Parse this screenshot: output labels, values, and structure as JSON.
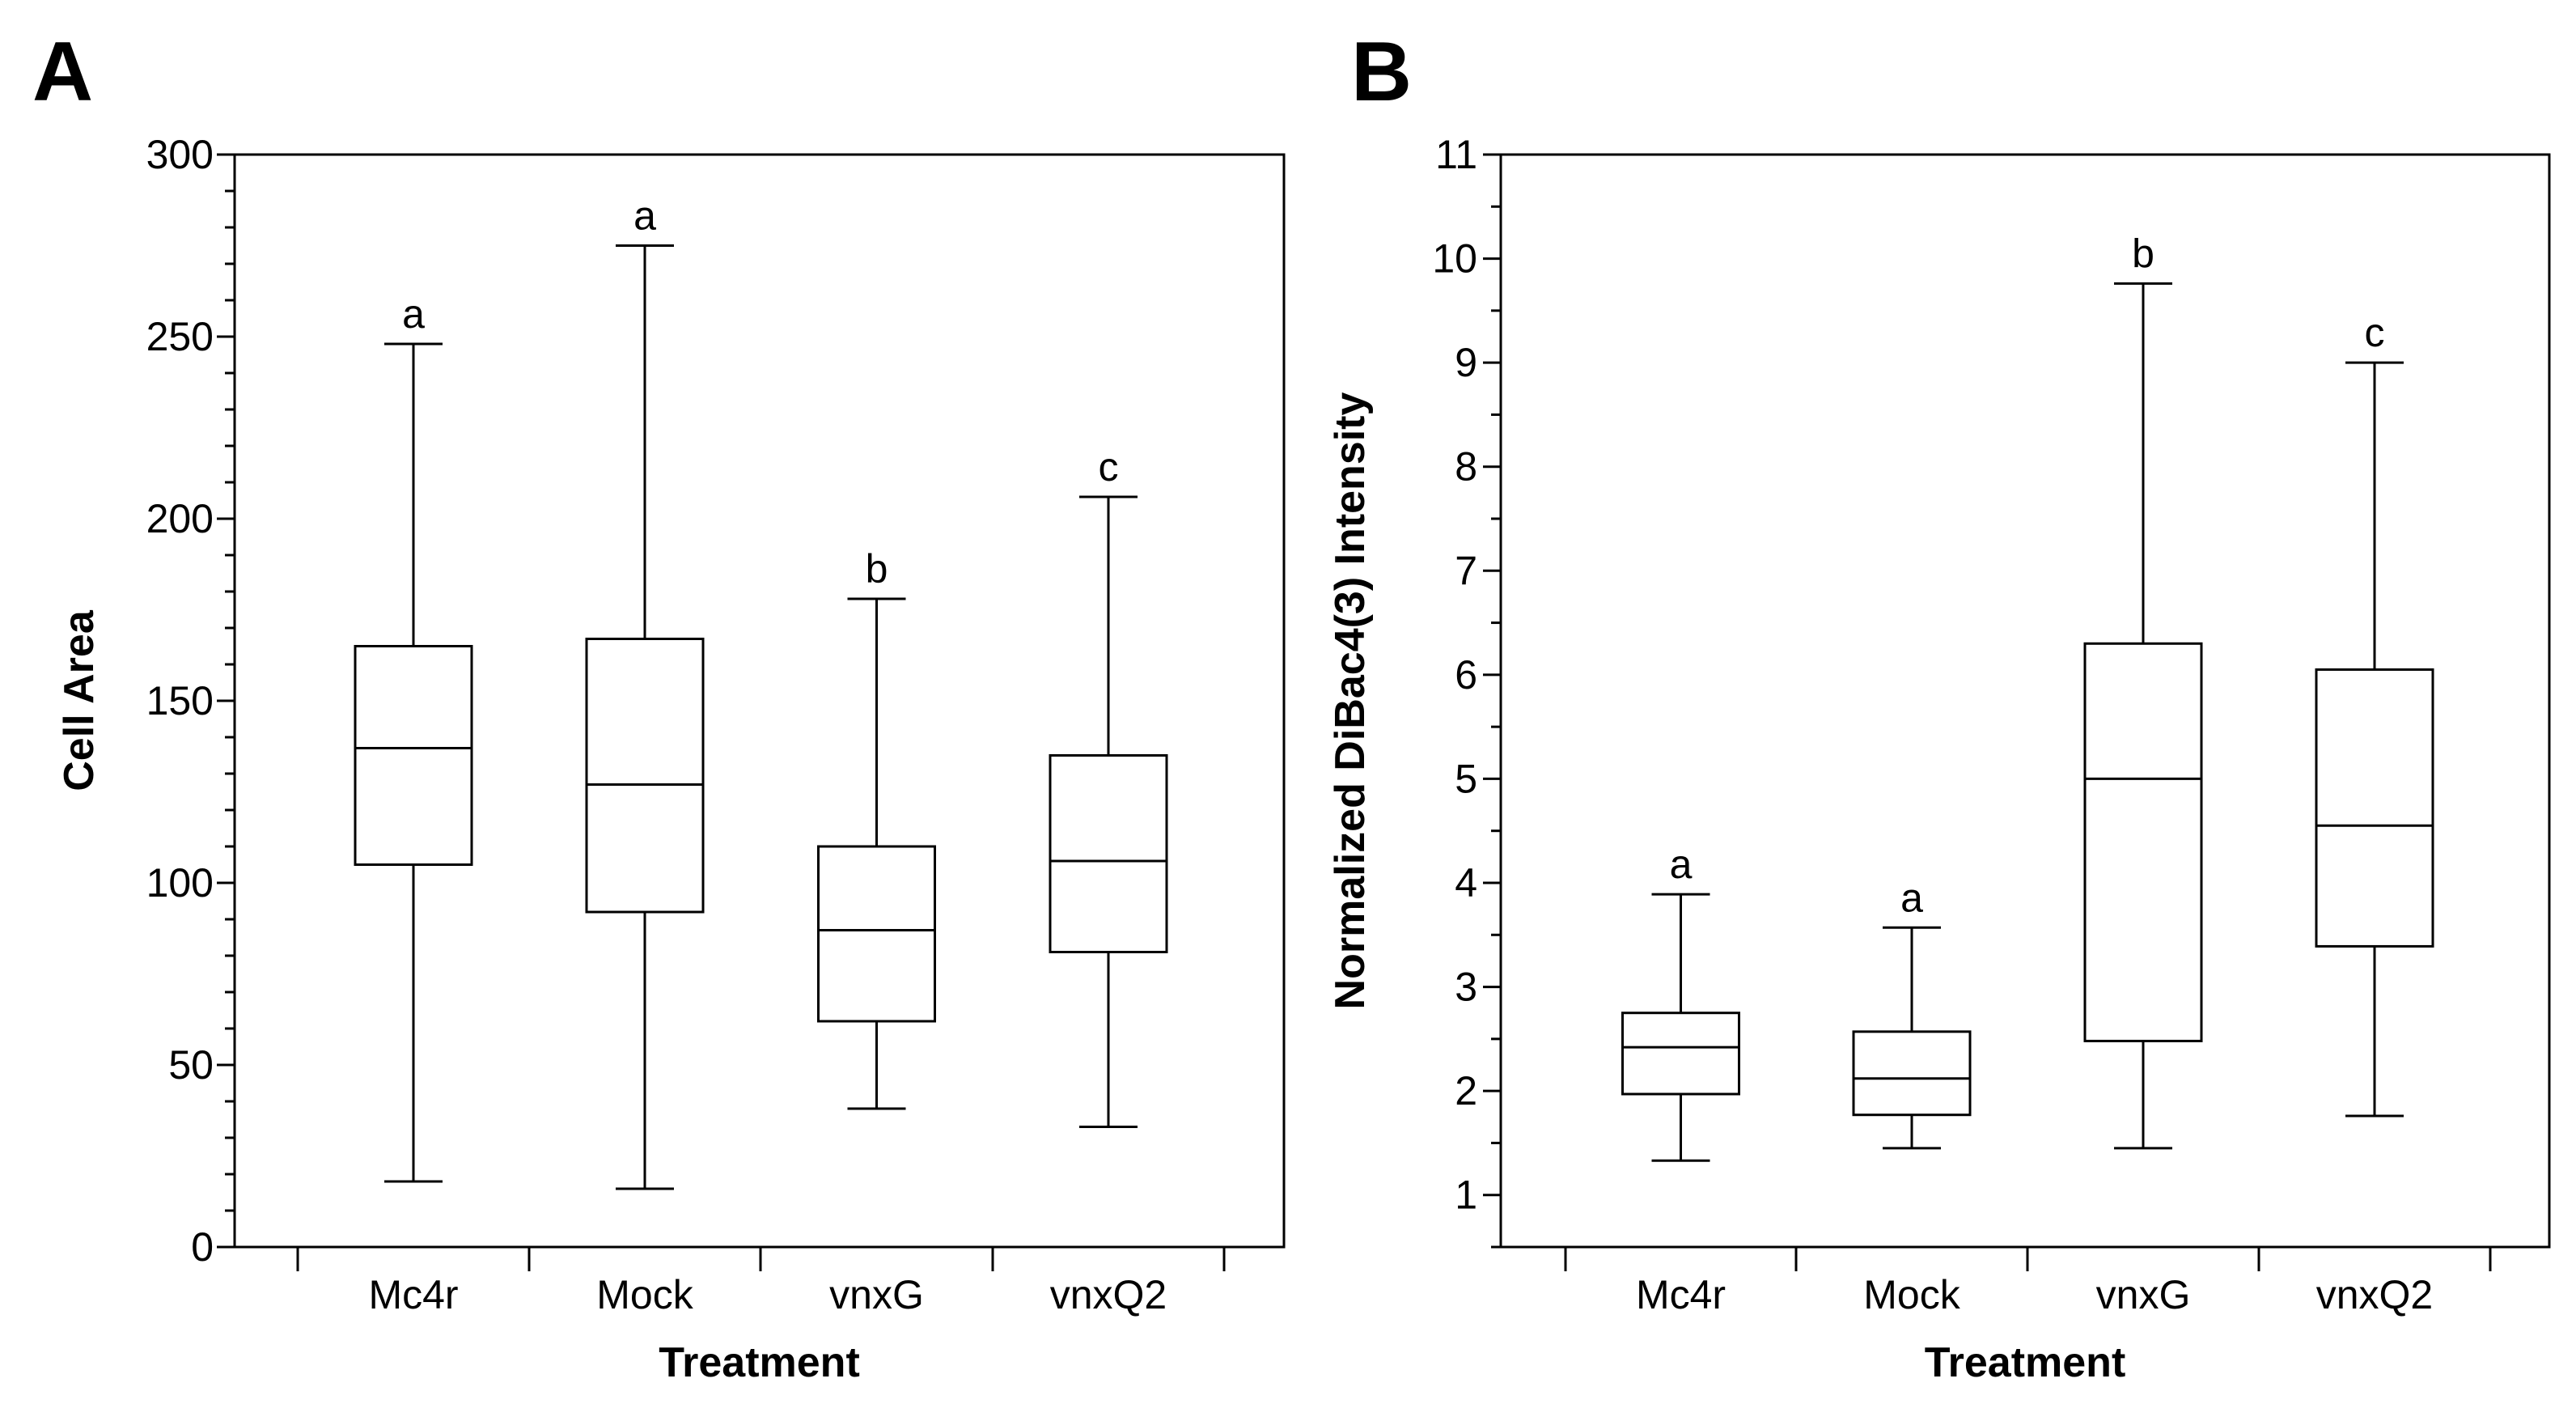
{
  "chart_data": [
    {
      "type": "box",
      "panel_label": "A",
      "xlabel": "Treatment",
      "ylabel": "Cell Area",
      "ylim": [
        0,
        300
      ],
      "major_ticks": [
        0,
        50,
        100,
        150,
        200,
        250,
        300
      ],
      "major_tick_labels": [
        "0",
        "50",
        "100",
        "150",
        "200",
        "250",
        "300"
      ],
      "minor_step": 10,
      "categories": [
        "Mc4r",
        "Mock",
        "vnxG",
        "vnxQ2"
      ],
      "boxes": [
        {
          "min": 18,
          "q1": 105,
          "median": 137,
          "q3": 165,
          "max": 248,
          "letter": "a"
        },
        {
          "min": 16,
          "q1": 92,
          "median": 127,
          "q3": 167,
          "max": 275,
          "letter": "a"
        },
        {
          "min": 38,
          "q1": 62,
          "median": 87,
          "q3": 110,
          "max": 178,
          "letter": "b"
        },
        {
          "min": 33,
          "q1": 81,
          "median": 106,
          "q3": 135,
          "max": 206,
          "letter": "c"
        }
      ]
    },
    {
      "type": "box",
      "panel_label": "B",
      "xlabel": "Treatment",
      "ylabel": "Normalized DiBac4(3) Intensity",
      "ylim": [
        0.5,
        11
      ],
      "major_ticks": [
        1,
        2,
        3,
        4,
        5,
        6,
        7,
        8,
        9,
        10,
        11
      ],
      "major_tick_labels": [
        "1",
        "2",
        "3",
        "4",
        "5",
        "6",
        "7",
        "8",
        "9",
        "10",
        "11"
      ],
      "minor_step": 0.5,
      "categories": [
        "Mc4r",
        "Mock",
        "vnxG",
        "vnxQ2"
      ],
      "boxes": [
        {
          "min": 1.33,
          "q1": 1.97,
          "median": 2.42,
          "q3": 2.75,
          "max": 3.89,
          "letter": "a"
        },
        {
          "min": 1.45,
          "q1": 1.77,
          "median": 2.12,
          "q3": 2.57,
          "max": 3.57,
          "letter": "a"
        },
        {
          "min": 1.45,
          "q1": 2.48,
          "median": 5.0,
          "q3": 6.3,
          "max": 9.76,
          "letter": "b"
        },
        {
          "min": 1.76,
          "q1": 3.39,
          "median": 4.55,
          "q3": 6.05,
          "max": 9.0,
          "letter": "c"
        }
      ]
    }
  ]
}
